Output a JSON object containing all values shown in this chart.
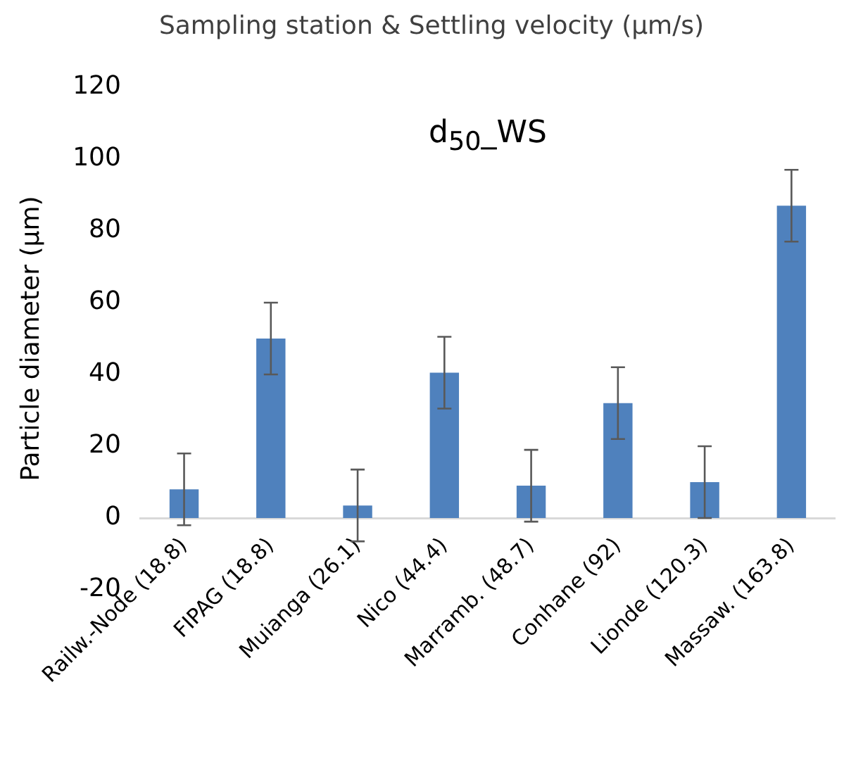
{
  "chart_data": {
    "type": "bar",
    "title": "d$_{50}$_WS",
    "xlabel": "Sampling station & Settling velocity (µm/s)",
    "ylabel": "Particle diameter (µm)",
    "categories": [
      "Railw.-Node (18.8)",
      "FIPAG (18.8)",
      "Muianga (26.1)",
      "Nico (44.4)",
      "Marramb. (48.7)",
      "Conhane (92)",
      "Lionde (120.3)",
      "Massaw. (163.8)"
    ],
    "values": [
      8,
      50,
      3.5,
      40.5,
      9,
      32,
      10,
      87
    ],
    "errors": [
      10,
      10,
      10,
      10,
      10,
      10,
      10,
      10
    ],
    "color": "#4f81bd",
    "ylim": [
      -20,
      120
    ],
    "yticks": [
      -20,
      0,
      20,
      40,
      60,
      80,
      100,
      120
    ],
    "grid": false,
    "legend": false
  }
}
